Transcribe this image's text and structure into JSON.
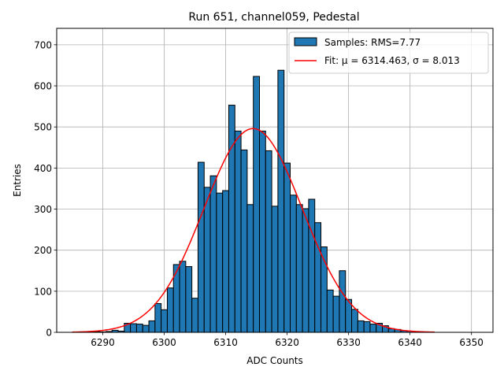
{
  "chart_data": {
    "type": "bar",
    "title": "Run 651, channel059, Pedestal",
    "xlabel": "ADC Counts",
    "ylabel": "Entries",
    "xlim": [
      6282.5,
      6353.5
    ],
    "ylim": [
      0,
      740
    ],
    "xticks": [
      6290,
      6300,
      6310,
      6320,
      6330,
      6340,
      6350
    ],
    "yticks": [
      0,
      100,
      200,
      300,
      400,
      500,
      600,
      700
    ],
    "grid": true,
    "legend_position": "top-right",
    "histogram": {
      "name": "Samples: RMS=7.77",
      "color": "#1f77b4",
      "bin_width": 1,
      "bins": [
        6287,
        6288,
        6289,
        6290,
        6291,
        6292,
        6293,
        6294,
        6295,
        6296,
        6297,
        6298,
        6299,
        6300,
        6301,
        6302,
        6303,
        6304,
        6305,
        6306,
        6307,
        6308,
        6309,
        6310,
        6311,
        6312,
        6313,
        6314,
        6315,
        6316,
        6317,
        6318,
        6319,
        6320,
        6321,
        6322,
        6323,
        6324,
        6325,
        6326,
        6327,
        6328,
        6329,
        6330,
        6331,
        6332,
        6333,
        6334,
        6335,
        6336,
        6337,
        6338,
        6339,
        6340
      ],
      "counts": [
        1,
        1,
        2,
        1,
        2,
        5,
        3,
        22,
        21,
        20,
        17,
        28,
        70,
        55,
        108,
        165,
        173,
        160,
        83,
        414,
        353,
        381,
        339,
        345,
        553,
        490,
        444,
        311,
        623,
        490,
        442,
        307,
        638,
        412,
        334,
        311,
        301,
        324,
        267,
        208,
        103,
        88,
        150,
        80,
        56,
        28,
        26,
        20,
        22,
        16,
        9,
        7,
        4,
        3
      ]
    },
    "fit": {
      "name": "Fit: μ = 6314.463, σ = 8.013",
      "mu": 6314.463,
      "sigma": 8.013,
      "amplitude": 496,
      "x_range": [
        6285,
        6344
      ],
      "color": "#ff0000"
    }
  }
}
